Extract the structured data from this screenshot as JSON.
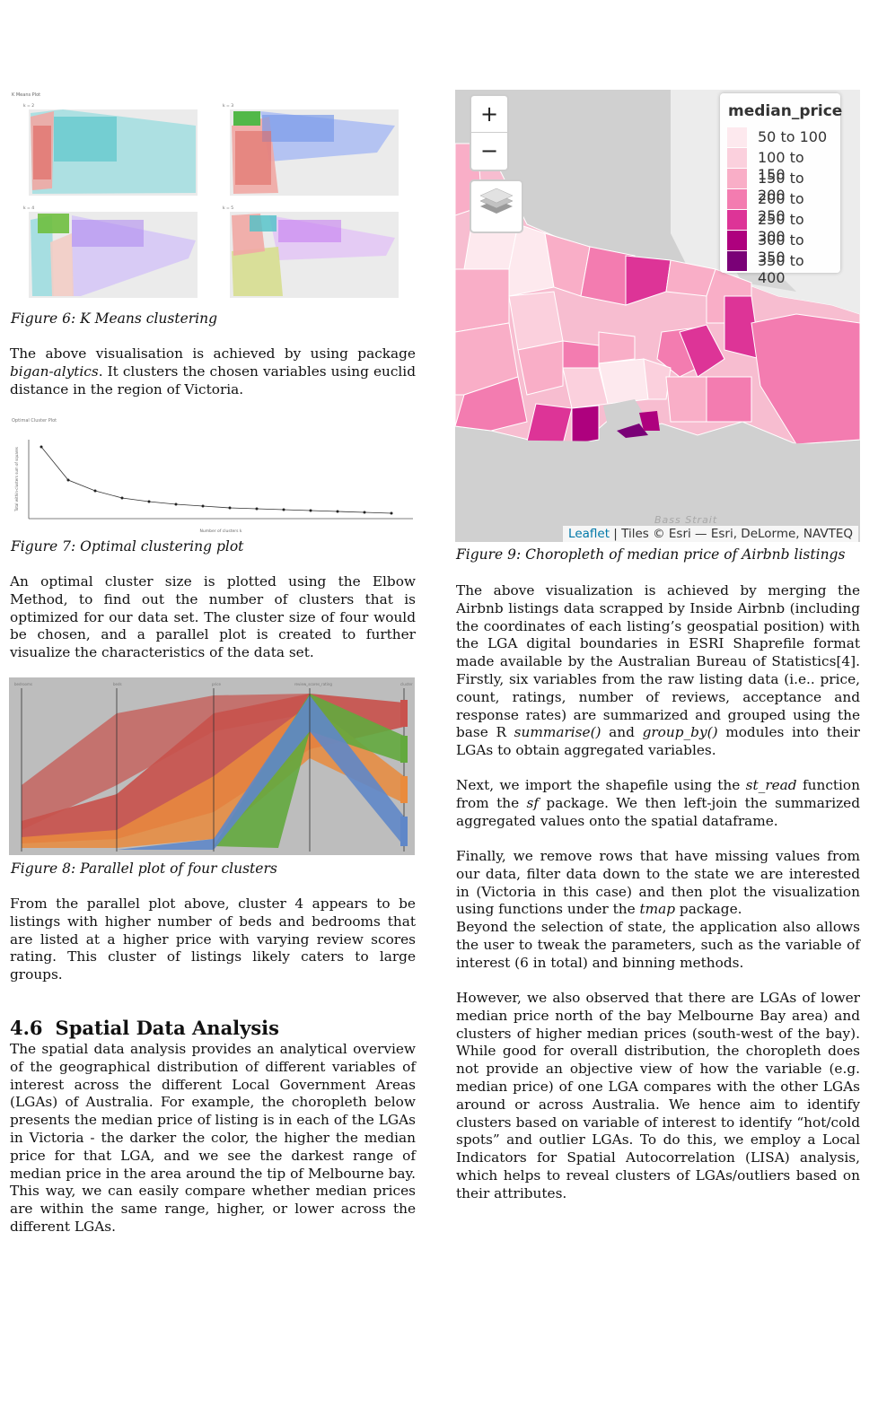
{
  "left": {
    "fig6": {
      "plot_title": "K Means Plot",
      "panel_labels": [
        "k = 2",
        "k = 3",
        "k = 4",
        "k = 5"
      ],
      "caption": "Figure 6:  K Means clustering"
    },
    "para1_a": "The above visualisation is achieved by using package ",
    "para1_em": "bigan-alytics",
    "para1_b": ". It clusters the chosen variables using euclid distance in the region of Victoria.",
    "fig7": {
      "plot_title": "Optimal Cluster Plot",
      "xlabel": "Number of clusters k",
      "ylabel": "Total within-clusters sum of squares",
      "caption": "Figure 7:  Optimal clustering plot"
    },
    "para2": "An optimal cluster size is plotted using the Elbow Method, to find out the number of clusters that is optimized for our data set.  The cluster size of four would be chosen, and a parallel plot is created to further visualize the characteristics of the data set.",
    "fig8": {
      "axis_labels": [
        "bedrooms",
        "beds",
        "price",
        "review_scores_rating",
        "cluster"
      ],
      "caption": "Figure 8:  Parallel plot of four clusters"
    },
    "para3": "From the parallel plot above, cluster 4 appears to be listings with higher number of beds and bedrooms that are listed at a higher price with varying review scores rating.  This cluster of listings likely caters to large groups.",
    "section": {
      "number": "4.6",
      "title": "Spatial Data Analysis"
    },
    "para4": "The spatial data analysis provides an analytical overview of the geographical distribution of different variables of interest across the different Local Government Areas (LGAs) of Australia.  For example, the choropleth below presents the median price of listing is in each of the LGAs in Victoria - the darker the color, the higher the median price for that LGA, and we see the darkest range of median price in the area around the tip of Melbourne bay.  This way, we can easily compare whether median prices are within the same range, higher, or lower across the different LGAs."
  },
  "right": {
    "fig9": {
      "zoom_in": "+",
      "zoom_out": "−",
      "legend_title": "median_price",
      "legend": [
        {
          "label": "50 to 100",
          "color": "#fde9ee"
        },
        {
          "label": "100 to 150",
          "color": "#fbd0dd"
        },
        {
          "label": "150 to 200",
          "color": "#f9aec7"
        },
        {
          "label": "200 to 250",
          "color": "#f37cb0"
        },
        {
          "label": "250 to 300",
          "color": "#dd3497"
        },
        {
          "label": "300 to 350",
          "color": "#ae017e"
        },
        {
          "label": "350 to 400",
          "color": "#7a0177"
        }
      ],
      "water_label": "Bass Strait",
      "attrib_leaflet": "Leaflet",
      "attrib_rest": " | Tiles © Esri — Esri, DeLorme, NAVTEQ",
      "caption": "Figure 9:  Choropleth of median price of Airbnb listings"
    },
    "para5_a": "The above visualization is achieved by merging the Airbnb listings data scrapped by Inside Airbnb (including the coordinates of each listing’s geospatial position) with the LGA digital boundaries in ESRI Shaprefile format made available by the Australian Bureau of Statistics[4].  Firstly, six variables from the raw listing data (i.e..  price, count, ratings, number of reviews, acceptance and response rates) are summarized and grouped using the base R ",
    "para5_em1": "summarise()",
    "para5_b": " and ",
    "para5_em2": "group_by()",
    "para5_c": " modules into their LGAs to obtain aggregated variables.",
    "para6_a": "Next,  we import the shapefile using the ",
    "para6_em1": "st_read",
    "para6_b": " function from the ",
    "para6_em2": "sf",
    "para6_c": " package.  We then left-join the summarized aggregated values onto the spatial dataframe.",
    "para7_a": "Finally, we remove rows that have missing values from our data, filter data down to the state we are interested in (Victoria in this case) and then plot the visualization using functions under the ",
    "para7_em": "tmap",
    "para7_b": " package.",
    "para8": "Beyond the selection of state, the application also allows the user to tweak the parameters, such as the variable of interest (6 in total) and binning methods.",
    "para9": "However, we also observed that there are LGAs of lower median price north of the bay Melbourne Bay area) and clusters of higher median prices (south-west of the bay).  While good for overall distribution, the choropleth does not provide an objective view of how the variable (e.g. median price) of one LGA compares with the other LGAs around or across Australia.  We hence aim to identify clusters based on variable of interest to identify “hot/cold spots” and outlier LGAs.  To do this, we employ a Local Indicators for Spatial Autocorrelation (LISA) analysis, which helps to reveal clusters of LGAs/outliers based on their attributes."
  }
}
